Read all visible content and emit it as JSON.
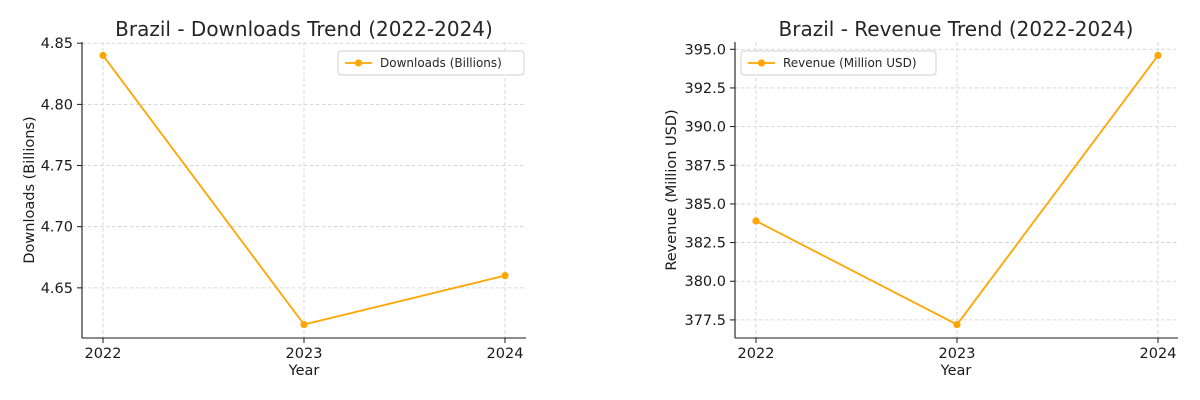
{
  "chart_data": [
    {
      "type": "line",
      "title": "Brazil - Downloads Trend (2022-2024)",
      "xlabel": "Year",
      "ylabel": "Downloads (Billions)",
      "categories": [
        "2022",
        "2023",
        "2024"
      ],
      "series": [
        {
          "name": "Downloads (Billions)",
          "values": [
            4.84,
            4.62,
            4.66
          ],
          "color": "#FFA500"
        }
      ],
      "yticks": [
        4.65,
        4.7,
        4.75,
        4.8,
        4.85
      ],
      "ytick_labels": [
        "4.65",
        "4.70",
        "4.75",
        "4.80",
        "4.85"
      ],
      "ylim": [
        4.609,
        4.851
      ],
      "grid": true,
      "legend_position": "top-right"
    },
    {
      "type": "line",
      "title": "Brazil - Revenue Trend (2022-2024)",
      "xlabel": "Year",
      "ylabel": "Revenue (Million USD)",
      "categories": [
        "2022",
        "2023",
        "2024"
      ],
      "series": [
        {
          "name": "Revenue (Million USD)",
          "values": [
            383.9,
            377.2,
            394.6
          ],
          "color": "#FFA500"
        }
      ],
      "yticks": [
        377.5,
        380.0,
        382.5,
        385.0,
        387.5,
        390.0,
        392.5,
        395.0
      ],
      "ytick_labels": [
        "377.5",
        "380.0",
        "382.5",
        "385.0",
        "387.5",
        "390.0",
        "392.5",
        "395.0"
      ],
      "ylim": [
        376.33,
        395.47
      ],
      "grid": true,
      "legend_position": "top-left"
    }
  ]
}
